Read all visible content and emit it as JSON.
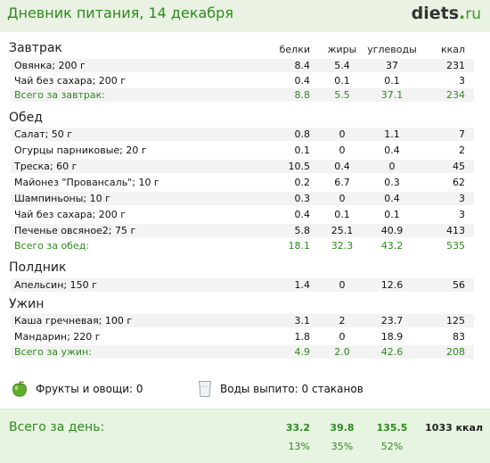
{
  "header": {
    "title": "Дневник питания, 14 декабря",
    "logo_main": "diets",
    "logo_dot": ".",
    "logo_tld": "ru"
  },
  "columns": {
    "b": "белки",
    "z": "жиры",
    "u": "углеводы",
    "k": "ккал"
  },
  "sections": {
    "breakfast": {
      "title": "Завтрак",
      "items": [
        {
          "name": "Овянка; 200 г",
          "b": "8.4",
          "z": "5.4",
          "u": "37",
          "k": "231"
        },
        {
          "name": "Чай без сахара; 200 г",
          "b": "0.4",
          "z": "0.1",
          "u": "0.1",
          "k": "3"
        }
      ],
      "total": {
        "name": "Всего за завтрак:",
        "b": "8.8",
        "z": "5.5",
        "u": "37.1",
        "k": "234"
      }
    },
    "lunch": {
      "title": "Обед",
      "items": [
        {
          "name": "Салат; 50 г",
          "b": "0.8",
          "z": "0",
          "u": "1.1",
          "k": "7"
        },
        {
          "name": "Огурцы парниковые; 20 г",
          "b": "0.1",
          "z": "0",
          "u": "0.4",
          "k": "2"
        },
        {
          "name": "Треска; 60 г",
          "b": "10.5",
          "z": "0.4",
          "u": "0",
          "k": "45"
        },
        {
          "name": "Майонез \"Провансаль\"; 10 г",
          "b": "0.2",
          "z": "6.7",
          "u": "0.3",
          "k": "62"
        },
        {
          "name": "Шампиньоны; 10 г",
          "b": "0.3",
          "z": "0",
          "u": "0.4",
          "k": "3"
        },
        {
          "name": "Чай без сахара; 200 г",
          "b": "0.4",
          "z": "0.1",
          "u": "0.1",
          "k": "3"
        },
        {
          "name": "Печенье овсяное2; 75 г",
          "b": "5.8",
          "z": "25.1",
          "u": "40.9",
          "k": "413"
        }
      ],
      "total": {
        "name": "Всего за обед:",
        "b": "18.1",
        "z": "32.3",
        "u": "43.2",
        "k": "535"
      }
    },
    "snack": {
      "title": "Полдник",
      "items": [
        {
          "name": "Апельсин; 150 г",
          "b": "1.4",
          "z": "0",
          "u": "12.6",
          "k": "56"
        }
      ]
    },
    "dinner": {
      "title": "Ужин",
      "items": [
        {
          "name": "Каша гречневая; 100 г",
          "b": "3.1",
          "z": "2",
          "u": "23.7",
          "k": "125"
        },
        {
          "name": "Мандарин; 220 г",
          "b": "1.8",
          "z": "0",
          "u": "18.9",
          "k": "83"
        }
      ],
      "total": {
        "name": "Всего за ужин:",
        "b": "4.9",
        "z": "2.0",
        "u": "42.6",
        "k": "208"
      }
    }
  },
  "extras": {
    "fruits_label": "Фрукты и овощи: 0",
    "water_label": "Воды выпито: 0 стаканов",
    "fruits_icon": "apple-icon",
    "water_icon": "glass-icon"
  },
  "day": {
    "label": "Всего за день:",
    "b": "33.2",
    "z": "39.8",
    "u": "135.5",
    "k": "1033 ккал",
    "pb": "13%",
    "pz": "35%",
    "pu": "52%"
  },
  "colors": {
    "accent": "#2f8a1e",
    "header_bg": "#e9f2e3",
    "day_bg": "#e6f4e1",
    "row_alt": "#f3f3f3"
  }
}
